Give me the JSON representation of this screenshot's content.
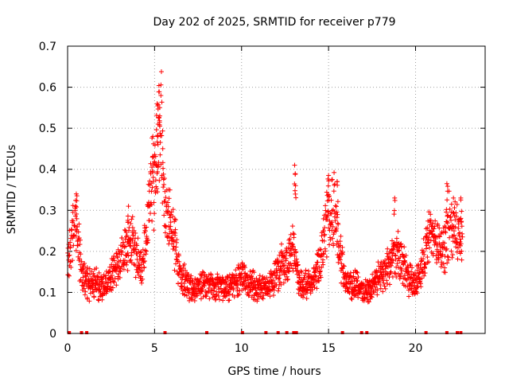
{
  "chart_data": {
    "type": "scatter",
    "title": "Day 202 of 2025, SRMTID for receiver p779",
    "xlabel": "GPS time / hours",
    "ylabel": "SRMTID / TECUs",
    "xlim": [
      0,
      24
    ],
    "ylim": [
      0,
      0.7
    ],
    "xticks": [
      0,
      5,
      10,
      15,
      20
    ],
    "yticks": [
      0,
      0.1,
      0.2,
      0.3,
      0.4,
      0.5,
      0.6,
      0.7
    ],
    "grid": true,
    "color": "#ff0000",
    "marker": "plus",
    "series": [
      {
        "name": "SRMTID",
        "profile": [
          [
            0.0,
            0.17
          ],
          [
            0.3,
            0.25
          ],
          [
            0.5,
            0.28
          ],
          [
            0.8,
            0.15
          ],
          [
            1.2,
            0.12
          ],
          [
            1.6,
            0.12
          ],
          [
            2.0,
            0.11
          ],
          [
            2.5,
            0.14
          ],
          [
            3.0,
            0.17
          ],
          [
            3.3,
            0.21
          ],
          [
            3.7,
            0.22
          ],
          [
            4.0,
            0.18
          ],
          [
            4.3,
            0.16
          ],
          [
            4.7,
            0.3
          ],
          [
            5.0,
            0.38
          ],
          [
            5.2,
            0.46
          ],
          [
            5.4,
            0.5
          ],
          [
            5.6,
            0.3
          ],
          [
            5.9,
            0.27
          ],
          [
            6.2,
            0.22
          ],
          [
            6.5,
            0.14
          ],
          [
            7.0,
            0.11
          ],
          [
            7.5,
            0.11
          ],
          [
            8.0,
            0.12
          ],
          [
            8.5,
            0.11
          ],
          [
            9.0,
            0.11
          ],
          [
            9.5,
            0.12
          ],
          [
            10.0,
            0.14
          ],
          [
            10.5,
            0.12
          ],
          [
            11.0,
            0.11
          ],
          [
            11.5,
            0.11
          ],
          [
            12.0,
            0.15
          ],
          [
            12.5,
            0.17
          ],
          [
            13.0,
            0.2
          ],
          [
            13.3,
            0.13
          ],
          [
            13.7,
            0.12
          ],
          [
            14.0,
            0.12
          ],
          [
            14.5,
            0.17
          ],
          [
            14.9,
            0.28
          ],
          [
            15.3,
            0.3
          ],
          [
            15.7,
            0.18
          ],
          [
            16.0,
            0.12
          ],
          [
            16.5,
            0.12
          ],
          [
            17.0,
            0.1
          ],
          [
            17.5,
            0.11
          ],
          [
            18.0,
            0.14
          ],
          [
            18.5,
            0.17
          ],
          [
            19.0,
            0.2
          ],
          [
            19.5,
            0.14
          ],
          [
            20.0,
            0.12
          ],
          [
            20.4,
            0.17
          ],
          [
            20.8,
            0.24
          ],
          [
            21.2,
            0.22
          ],
          [
            21.6,
            0.2
          ],
          [
            22.0,
            0.28
          ],
          [
            22.5,
            0.24
          ],
          [
            22.7,
            0.24
          ]
        ],
        "spikes": [
          [
            5.25,
            0.604
          ],
          [
            5.15,
            0.56
          ],
          [
            5.3,
            0.53
          ],
          [
            5.2,
            0.51
          ],
          [
            4.9,
            0.48
          ],
          [
            13.05,
            0.41
          ],
          [
            15.0,
            0.385
          ],
          [
            13.1,
            0.36
          ],
          [
            21.8,
            0.365
          ],
          [
            15.5,
            0.37
          ],
          [
            0.5,
            0.34
          ],
          [
            3.5,
            0.31
          ],
          [
            18.8,
            0.33
          ],
          [
            22.6,
            0.33
          ]
        ]
      }
    ],
    "gap_markers_x": [
      0.1,
      0.8,
      1.1,
      5.6,
      8.0,
      10.05,
      11.4,
      12.1,
      12.6,
      13.0,
      13.15,
      15.8,
      16.9,
      17.2,
      20.6,
      21.8,
      22.4,
      22.6
    ]
  }
}
